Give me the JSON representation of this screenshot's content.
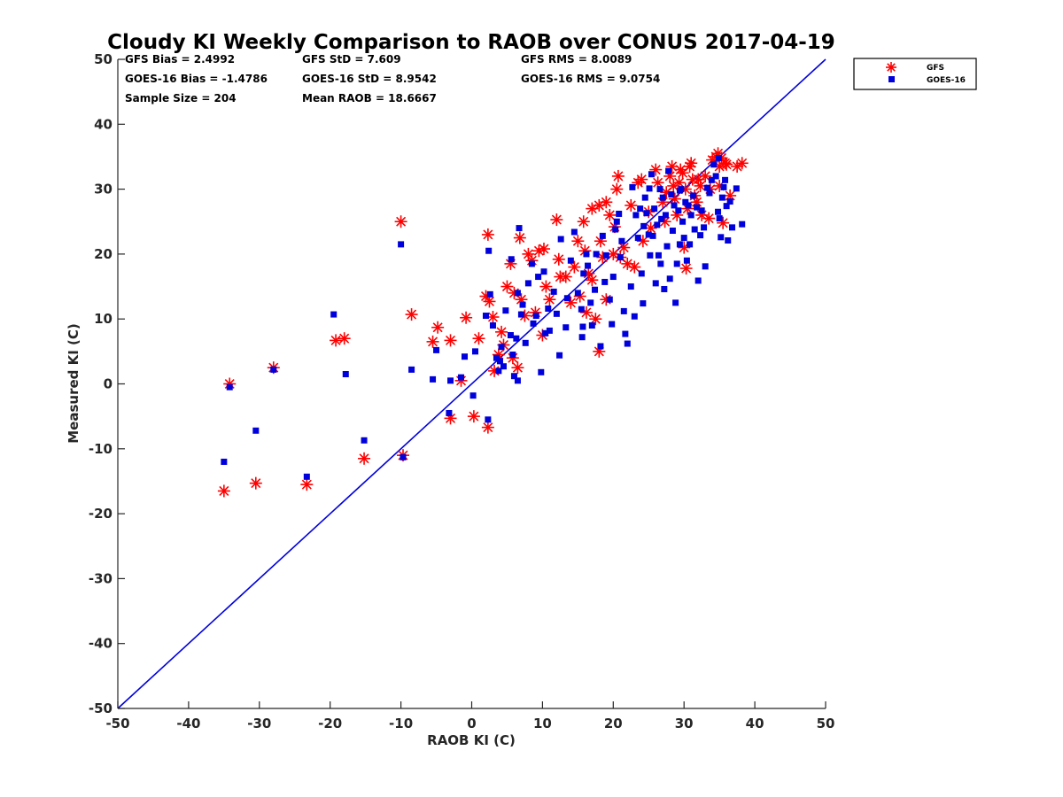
{
  "chart_data": {
    "type": "scatter",
    "title": "Cloudy KI Weekly Comparison to RAOB over CONUS 2017-04-19",
    "xlabel": "RAOB KI (C)",
    "ylabel": "Measured KI (C)",
    "xlim": [
      -50,
      50
    ],
    "ylim": [
      -50,
      50
    ],
    "xticks": [
      "-50",
      "-40",
      "-30",
      "-20",
      "-10",
      "0",
      "10",
      "20",
      "30",
      "40",
      "50"
    ],
    "yticks": [
      "50",
      "40",
      "30",
      "20",
      "10",
      "0",
      "-10",
      "-20",
      "-30",
      "-40",
      "-50"
    ],
    "grid": false,
    "legend_position": "outside-top-right",
    "reference_line": {
      "name": "1:1 line",
      "x": [
        -50,
        50
      ],
      "y": [
        -50,
        50
      ],
      "color": "#0000dd"
    },
    "stats": [
      [
        "GFS Bias = 2.4992",
        "GFS StD = 7.609",
        "GFS RMS = 8.0089"
      ],
      [
        "GOES-16 Bias = -1.4786",
        "GOES-16 StD = 8.9542",
        "GOES-16 RMS = 9.0754"
      ],
      [
        "Sample Size = 204",
        "Mean RAOB = 18.6667",
        ""
      ]
    ],
    "series": [
      {
        "name": "GFS",
        "marker": "asterisk",
        "color": "#ff0000",
        "points": [
          [
            -35,
            -16.5
          ],
          [
            -34.2,
            0
          ],
          [
            -30.5,
            -15.3
          ],
          [
            -28,
            2.5
          ],
          [
            -23.3,
            -15.5
          ],
          [
            -19.2,
            6.7
          ],
          [
            -18,
            7
          ],
          [
            -15.2,
            -11.5
          ],
          [
            -10,
            25
          ],
          [
            -9.7,
            -11
          ],
          [
            -8.5,
            10.7
          ],
          [
            -5.5,
            6.5
          ],
          [
            -4.8,
            8.7
          ],
          [
            -3,
            -5.3
          ],
          [
            -3,
            6.7
          ],
          [
            -1.5,
            0.5
          ],
          [
            -0.8,
            10.2
          ],
          [
            0.3,
            -5
          ],
          [
            1,
            7
          ],
          [
            2,
            13.5
          ],
          [
            2.3,
            -6.7
          ],
          [
            2.3,
            23
          ],
          [
            2.5,
            12.7
          ],
          [
            3,
            10.3
          ],
          [
            3.2,
            2
          ],
          [
            3.8,
            4.5
          ],
          [
            4.2,
            8
          ],
          [
            4.5,
            6
          ],
          [
            5,
            15
          ],
          [
            5.5,
            18.5
          ],
          [
            5.8,
            4
          ],
          [
            6,
            14
          ],
          [
            6.5,
            2.5
          ],
          [
            6.8,
            22.5
          ],
          [
            7,
            13
          ],
          [
            7.5,
            10.5
          ],
          [
            8,
            20
          ],
          [
            8.5,
            19
          ],
          [
            9,
            11
          ],
          [
            9.5,
            20.5
          ],
          [
            10,
            7.5
          ],
          [
            10.2,
            20.8
          ],
          [
            10.5,
            15
          ],
          [
            11,
            13
          ],
          [
            12,
            25.3
          ],
          [
            12.3,
            19.2
          ],
          [
            12.5,
            16.5
          ],
          [
            13.3,
            16.5
          ],
          [
            14,
            12.5
          ],
          [
            14.5,
            18
          ],
          [
            15,
            22
          ],
          [
            15.3,
            13.5
          ],
          [
            15.8,
            25
          ],
          [
            16,
            20.5
          ],
          [
            16.2,
            11
          ],
          [
            16.5,
            17
          ],
          [
            17,
            16
          ],
          [
            17,
            27
          ],
          [
            17.5,
            10
          ],
          [
            18,
            5
          ],
          [
            18,
            27.5
          ],
          [
            18.2,
            22
          ],
          [
            18.5,
            19.5
          ],
          [
            19,
            13
          ],
          [
            19,
            28
          ],
          [
            19.5,
            26
          ],
          [
            20,
            20
          ],
          [
            20.2,
            24.2
          ],
          [
            20.5,
            30
          ],
          [
            20.7,
            32
          ],
          [
            21,
            19.5
          ],
          [
            21.5,
            21
          ],
          [
            22,
            18.5
          ],
          [
            22.5,
            27.5
          ],
          [
            23,
            18
          ],
          [
            23.5,
            31
          ],
          [
            24,
            31.5
          ],
          [
            24.2,
            22
          ],
          [
            25,
            26.5
          ],
          [
            25.3,
            24
          ],
          [
            26,
            33
          ],
          [
            26.3,
            31
          ],
          [
            27,
            28
          ],
          [
            27.3,
            25
          ],
          [
            27.5,
            29.5
          ],
          [
            28,
            32
          ],
          [
            28.3,
            33.5
          ],
          [
            28.5,
            30.5
          ],
          [
            28.7,
            28.5
          ],
          [
            29,
            26
          ],
          [
            29.3,
            31
          ],
          [
            29.5,
            33
          ],
          [
            29.8,
            32.5
          ],
          [
            30,
            21
          ],
          [
            30.2,
            30
          ],
          [
            30.3,
            17.8
          ],
          [
            30.5,
            27
          ],
          [
            30.8,
            33.5
          ],
          [
            31,
            34
          ],
          [
            31.2,
            31.5
          ],
          [
            31.5,
            29
          ],
          [
            31.8,
            28
          ],
          [
            32,
            31.5
          ],
          [
            32.3,
            30.5
          ],
          [
            32.5,
            26
          ],
          [
            33,
            32
          ],
          [
            33.5,
            25.5
          ],
          [
            33.7,
            30
          ],
          [
            34,
            34.5
          ],
          [
            34.5,
            35
          ],
          [
            34.8,
            35.5
          ],
          [
            35,
            30.5
          ],
          [
            35,
            33.5
          ],
          [
            35.5,
            24.8
          ],
          [
            35.8,
            34
          ],
          [
            36,
            33.8
          ],
          [
            36.5,
            29
          ],
          [
            37.5,
            33.5
          ],
          [
            38.2,
            34
          ],
          [
            35.3,
            34.8
          ]
        ]
      },
      {
        "name": "GOES-16",
        "marker": "square",
        "color": "#0000dd",
        "points": [
          [
            -35,
            -12
          ],
          [
            -34.2,
            -0.5
          ],
          [
            -30.5,
            -7.2
          ],
          [
            -28,
            2.2
          ],
          [
            -23.3,
            -14.3
          ],
          [
            -19.5,
            10.7
          ],
          [
            -17.8,
            1.5
          ],
          [
            -15.2,
            -8.7
          ],
          [
            -10,
            21.5
          ],
          [
            -9.7,
            -11.3
          ],
          [
            -8.5,
            2.2
          ],
          [
            -5.5,
            0.7
          ],
          [
            -5,
            5.2
          ],
          [
            -3.2,
            -4.5
          ],
          [
            -3,
            0.5
          ],
          [
            -1.5,
            1
          ],
          [
            -1,
            4.2
          ],
          [
            0.2,
            -1.8
          ],
          [
            0.5,
            5
          ],
          [
            2,
            10.5
          ],
          [
            2.3,
            -5.5
          ],
          [
            2.4,
            20.5
          ],
          [
            2.6,
            13.8
          ],
          [
            3,
            9
          ],
          [
            3.5,
            4
          ],
          [
            3.8,
            2
          ],
          [
            4,
            3.5
          ],
          [
            4.2,
            5.7
          ],
          [
            4.5,
            2.7
          ],
          [
            4.8,
            11.3
          ],
          [
            5.5,
            7.5
          ],
          [
            5.6,
            19.2
          ],
          [
            5.8,
            4.5
          ],
          [
            6,
            1.2
          ],
          [
            6.3,
            7
          ],
          [
            6.5,
            0.5
          ],
          [
            6.5,
            14
          ],
          [
            6.7,
            24
          ],
          [
            7,
            10.7
          ],
          [
            7.2,
            12.2
          ],
          [
            7.6,
            6.3
          ],
          [
            8,
            15.5
          ],
          [
            8.5,
            18.5
          ],
          [
            8.7,
            9.3
          ],
          [
            9.1,
            10.5
          ],
          [
            9.4,
            16.5
          ],
          [
            9.8,
            1.8
          ],
          [
            10.2,
            17.3
          ],
          [
            10.4,
            7.8
          ],
          [
            10.8,
            11.6
          ],
          [
            11,
            8.2
          ],
          [
            11.6,
            14.2
          ],
          [
            12,
            10.8
          ],
          [
            12.4,
            4.4
          ],
          [
            12.6,
            22.3
          ],
          [
            13.3,
            8.7
          ],
          [
            13.5,
            13.2
          ],
          [
            14,
            19
          ],
          [
            14.5,
            23.4
          ],
          [
            15,
            14
          ],
          [
            15.5,
            11.5
          ],
          [
            15.6,
            7.2
          ],
          [
            15.7,
            8.8
          ],
          [
            15.8,
            17
          ],
          [
            16.2,
            20
          ],
          [
            16.4,
            18.2
          ],
          [
            16.8,
            12.5
          ],
          [
            17,
            9
          ],
          [
            17.4,
            14.5
          ],
          [
            17.6,
            20
          ],
          [
            18.2,
            5.8
          ],
          [
            18.5,
            22.8
          ],
          [
            18.8,
            15.7
          ],
          [
            19,
            19.8
          ],
          [
            19.5,
            13
          ],
          [
            19.8,
            9.2
          ],
          [
            20,
            16.5
          ],
          [
            20.3,
            23.8
          ],
          [
            20.5,
            25
          ],
          [
            20.8,
            26.2
          ],
          [
            21,
            19.5
          ],
          [
            21.2,
            22
          ],
          [
            21.5,
            11.2
          ],
          [
            21.7,
            7.7
          ],
          [
            22,
            6.2
          ],
          [
            22.5,
            15
          ],
          [
            22.7,
            30.3
          ],
          [
            23,
            10.4
          ],
          [
            23.2,
            26
          ],
          [
            23.5,
            22.5
          ],
          [
            23.8,
            27
          ],
          [
            24,
            17
          ],
          [
            24.2,
            12.4
          ],
          [
            24.3,
            24.3
          ],
          [
            24.5,
            28.7
          ],
          [
            24.7,
            26.3
          ],
          [
            25,
            23
          ],
          [
            25.1,
            30.1
          ],
          [
            25.2,
            19.8
          ],
          [
            25.4,
            32.3
          ],
          [
            25.6,
            22.8
          ],
          [
            25.8,
            27
          ],
          [
            26,
            15.5
          ],
          [
            26.2,
            24.5
          ],
          [
            26.4,
            19.8
          ],
          [
            26.6,
            30
          ],
          [
            26.8,
            25.4
          ],
          [
            27,
            28.7
          ],
          [
            27.2,
            14.6
          ],
          [
            27.4,
            26
          ],
          [
            27.6,
            21.2
          ],
          [
            27.8,
            32.8
          ],
          [
            28,
            16.2
          ],
          [
            28.2,
            29.2
          ],
          [
            28.4,
            23.6
          ],
          [
            28.6,
            27.5
          ],
          [
            28.8,
            12.5
          ],
          [
            29,
            18.5
          ],
          [
            29.2,
            26.7
          ],
          [
            29.4,
            29.8
          ],
          [
            29.6,
            30
          ],
          [
            29.8,
            25
          ],
          [
            30,
            22.5
          ],
          [
            30.2,
            28
          ],
          [
            30.4,
            19
          ],
          [
            30.6,
            27.5
          ],
          [
            30.8,
            21.5
          ],
          [
            31,
            26
          ],
          [
            31.3,
            29
          ],
          [
            31.5,
            23.8
          ],
          [
            31.8,
            27.2
          ],
          [
            32,
            15.9
          ],
          [
            32.3,
            22.9
          ],
          [
            32.5,
            26.7
          ],
          [
            32.8,
            24.1
          ],
          [
            33,
            18.1
          ],
          [
            33.3,
            30.2
          ],
          [
            33.6,
            29.4
          ],
          [
            33.9,
            31.4
          ],
          [
            34.2,
            33.8
          ],
          [
            34.5,
            32
          ],
          [
            34.8,
            26.5
          ],
          [
            35,
            25.5
          ],
          [
            35.2,
            22.6
          ],
          [
            35.4,
            28.7
          ],
          [
            35.6,
            30.3
          ],
          [
            35.8,
            31.4
          ],
          [
            36,
            27.4
          ],
          [
            36.2,
            22.1
          ],
          [
            36.5,
            28.1
          ],
          [
            36.8,
            24.1
          ],
          [
            37.4,
            30.1
          ],
          [
            38.2,
            24.6
          ],
          [
            34.9,
            34.8
          ],
          [
            29.4,
            21.5
          ],
          [
            26.7,
            18.5
          ]
        ]
      }
    ]
  }
}
